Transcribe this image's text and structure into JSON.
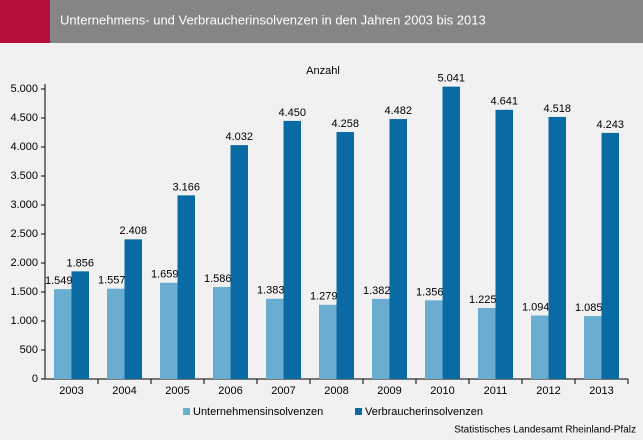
{
  "chart_data": {
    "type": "bar",
    "title": "Unternehmens- und Verbraucherinsolvenzen in den Jahren 2003 bis 2013",
    "y_label": "Anzahl",
    "source": "Statistisches Landesamt Rheinland-Pfalz",
    "categories": [
      "2003",
      "2004",
      "2005",
      "2006",
      "2007",
      "2008",
      "2009",
      "2010",
      "2011",
      "2012",
      "2013"
    ],
    "series": [
      {
        "name": "Unternehmensinsolvenzen",
        "color": "#6badd0",
        "values": [
          1549,
          1557,
          1659,
          1586,
          1383,
          1279,
          1382,
          1356,
          1225,
          1094,
          1085
        ],
        "value_labels": [
          "1.549",
          "1.557",
          "1.659",
          "1.586",
          "1.383",
          "1.279",
          "1.382",
          "1.356",
          "1.225",
          "1.094",
          "1.085"
        ]
      },
      {
        "name": "Verbraucherinsolvenzen",
        "color": "#0a6aa3",
        "values": [
          1856,
          2408,
          3166,
          4032,
          4450,
          4258,
          4482,
          5041,
          4641,
          4518,
          4243
        ],
        "value_labels": [
          "1.856",
          "2.408",
          "3.166",
          "4.032",
          "4.450",
          "4.258",
          "4.482",
          "5.041",
          "4.641",
          "4.518",
          "4.243"
        ]
      }
    ],
    "ylim": [
      0,
      5000
    ],
    "yticks": [
      0,
      500,
      {
        "value": 1000,
        "label": "1.000"
      },
      {
        "value": 1500,
        "label": "1.500"
      },
      {
        "value": 2000,
        "label": "2.000"
      },
      {
        "value": 2500,
        "label": "2.500"
      },
      {
        "value": 3000,
        "label": "3.000"
      },
      {
        "value": 3500,
        "label": "3.500"
      },
      {
        "value": 4000,
        "label": "4.000"
      },
      {
        "value": 4500,
        "label": "4.500"
      },
      {
        "value": 5000,
        "label": "5.000"
      }
    ],
    "legend": "bottom"
  }
}
